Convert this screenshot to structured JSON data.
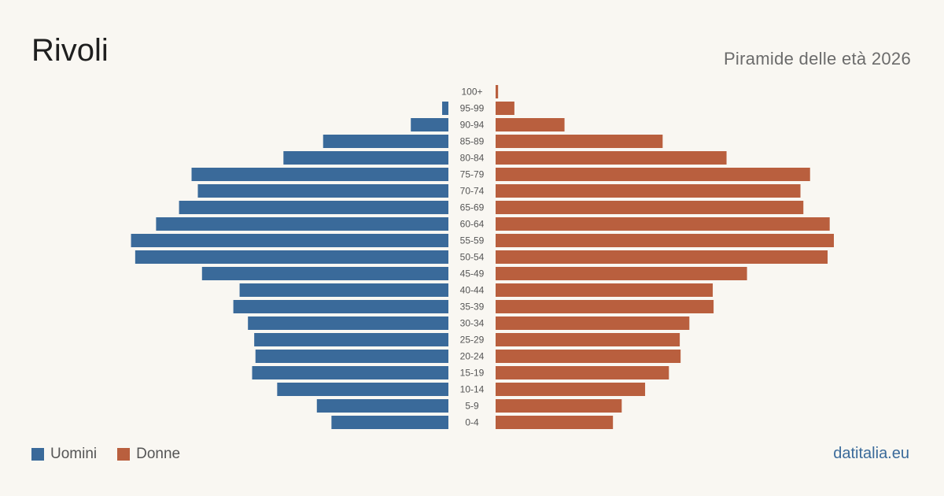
{
  "header": {
    "title": "Rivoli",
    "subtitle": "Piramide delle età 2026"
  },
  "legend": {
    "men_label": "Uomini",
    "women_label": "Donne"
  },
  "footer": {
    "brand": "datitalia.eu"
  },
  "colors": {
    "men": "#3a6a9a",
    "women": "#b95f3e",
    "background": "#f9f7f2",
    "tick_text": "#555555"
  },
  "chart_data": {
    "type": "bar",
    "orientation": "horizontal-pyramid",
    "categories": [
      "100+",
      "95-99",
      "90-94",
      "85-89",
      "80-84",
      "75-79",
      "70-74",
      "65-69",
      "60-64",
      "55-59",
      "50-54",
      "45-49",
      "40-44",
      "35-39",
      "30-34",
      "25-29",
      "20-24",
      "15-19",
      "10-14",
      "5-9",
      "0-4"
    ],
    "series": [
      {
        "name": "Uomini",
        "values": [
          0,
          15,
          90,
          300,
          395,
          615,
          600,
          645,
          700,
          760,
          750,
          590,
          500,
          515,
          480,
          465,
          462,
          470,
          410,
          315,
          280
        ]
      },
      {
        "name": "Donne",
        "values": [
          6,
          45,
          165,
          400,
          553,
          753,
          730,
          737,
          800,
          810,
          795,
          602,
          520,
          522,
          464,
          441,
          443,
          415,
          358,
          302,
          281
        ]
      }
    ],
    "legend": "bottom-left",
    "grid": false
  }
}
